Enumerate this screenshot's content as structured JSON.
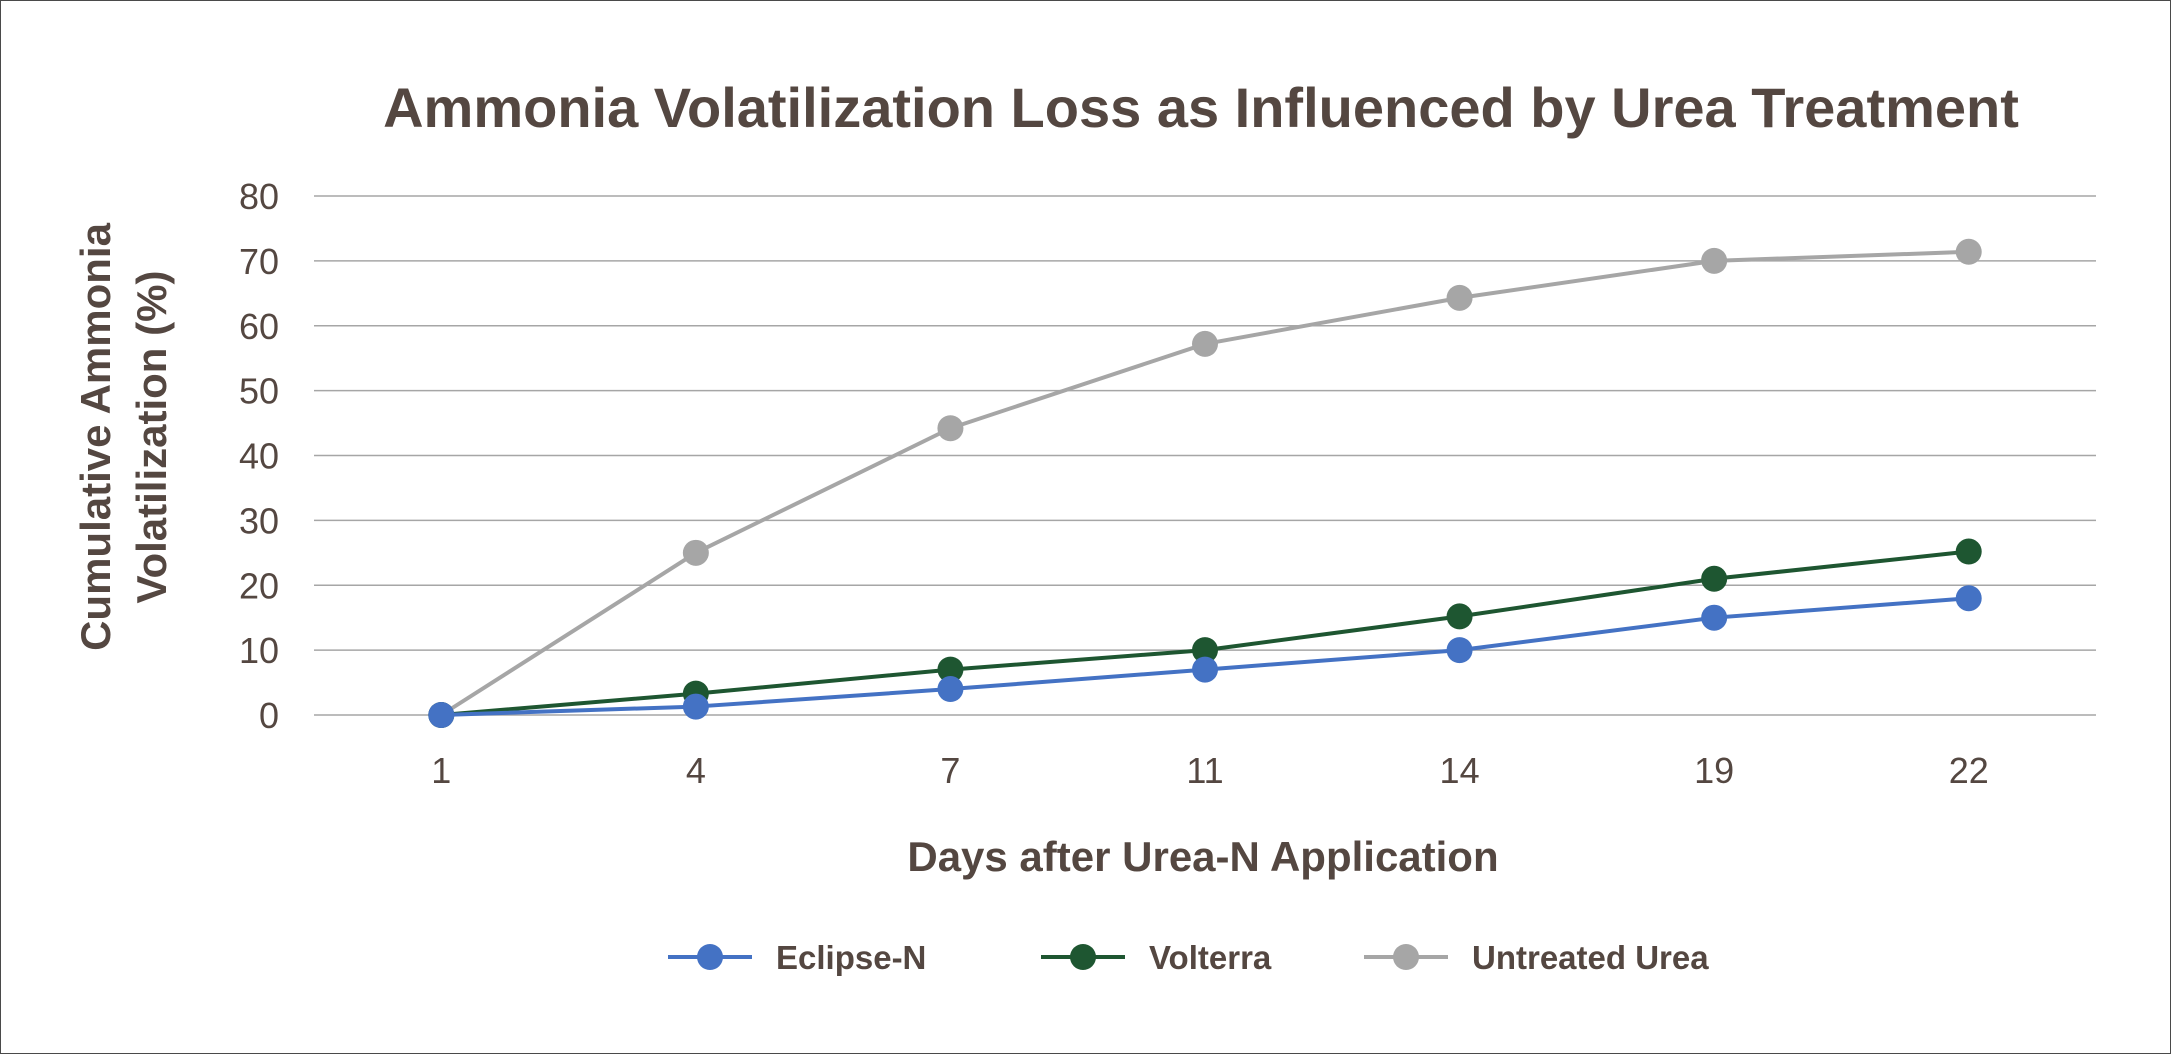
{
  "chart_data": {
    "type": "line",
    "title": "Ammonia Volatilization Loss as Influenced by Urea Treatment",
    "xlabel": "Days after Urea-N Application",
    "ylabel_lines": [
      "Cumulative Ammonia",
      "Volatilization (%)"
    ],
    "categories": [
      "1",
      "4",
      "7",
      "11",
      "14",
      "19",
      "22"
    ],
    "ylim": [
      0,
      80
    ],
    "yticks": [
      0,
      10,
      20,
      30,
      40,
      50,
      60,
      70,
      80
    ],
    "grid": true,
    "legend_position": "bottom",
    "series": [
      {
        "name": "Eclipse-N",
        "color": "#4472c4",
        "values": [
          0,
          1.3,
          4,
          7,
          10,
          15,
          18
        ]
      },
      {
        "name": "Volterra",
        "color": "#1e5631",
        "values": [
          0,
          3.3,
          7,
          10,
          15.2,
          21,
          25.2
        ]
      },
      {
        "name": "Untreated Urea",
        "color": "#a6a6a6",
        "values": [
          0,
          25,
          44.2,
          57.2,
          64.3,
          70,
          71.4
        ]
      }
    ]
  }
}
